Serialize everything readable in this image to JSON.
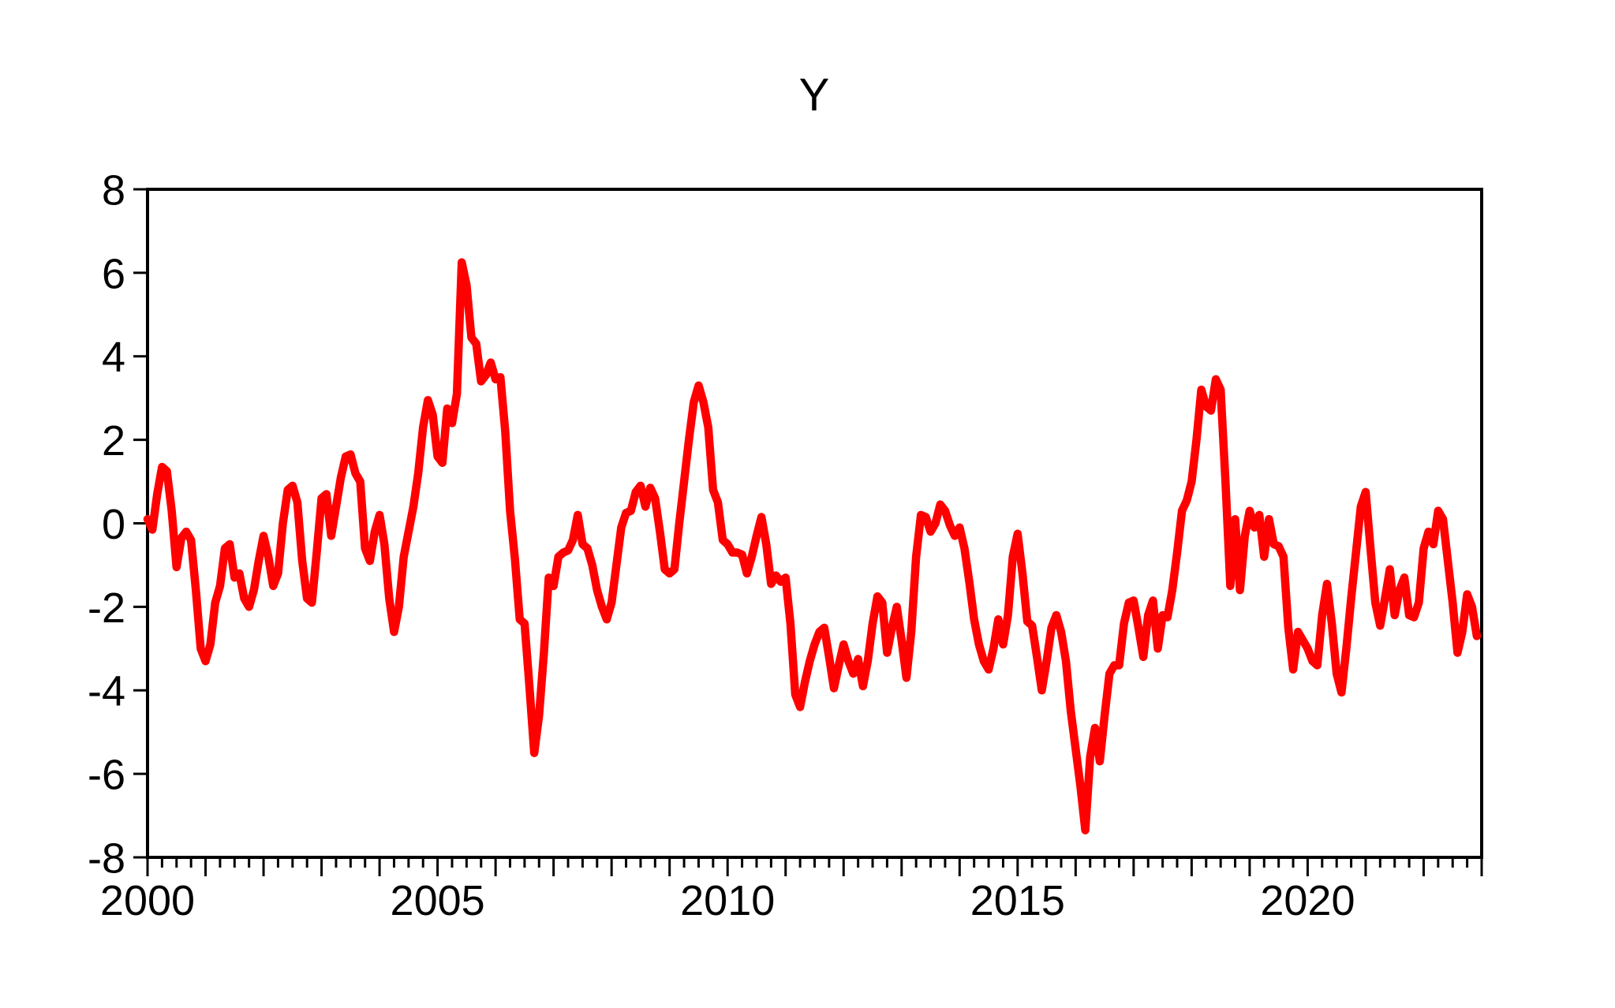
{
  "page": {
    "background_color": "#ffffff",
    "text_color": "#000000"
  },
  "chart_data": {
    "type": "line",
    "title": "Y",
    "xlabel": "",
    "ylabel": "",
    "xlim": [
      2000,
      2023
    ],
    "ylim": [
      -8,
      8
    ],
    "grid": false,
    "legend": "none",
    "frame": "box",
    "frame_color": "#000000",
    "y_ticks": [
      8,
      6,
      4,
      2,
      0,
      -2,
      -4,
      -6,
      -8
    ],
    "x_major_tick_years": [
      2000,
      2001,
      2002,
      2003,
      2004,
      2005,
      2006,
      2007,
      2008,
      2009,
      2010,
      2011,
      2012,
      2013,
      2014,
      2015,
      2016,
      2017,
      2018,
      2019,
      2020,
      2021,
      2022,
      2023
    ],
    "x_minor_tick_step_years": 0.25,
    "x_tick_labels": [
      {
        "label": "2000",
        "year": 2000
      },
      {
        "label": "2005",
        "year": 2005
      },
      {
        "label": "2010",
        "year": 2010
      },
      {
        "label": "2015",
        "year": 2015
      },
      {
        "label": "2020",
        "year": 2020
      }
    ],
    "series": [
      {
        "name": "Y",
        "color": "#ff0000",
        "line_width": 10.5,
        "frequency": "monthly",
        "start": "2000-01",
        "end": "2022-12",
        "values": [
          0.1,
          -0.15,
          0.7,
          1.35,
          1.25,
          0.3,
          -1.05,
          -0.35,
          -0.2,
          -0.4,
          -1.6,
          -3.0,
          -3.3,
          -2.9,
          -1.9,
          -1.5,
          -0.6,
          -0.5,
          -1.3,
          -1.2,
          -1.8,
          -2.0,
          -1.6,
          -0.9,
          -0.3,
          -0.8,
          -1.5,
          -1.2,
          0.0,
          0.8,
          0.9,
          0.5,
          -0.9,
          -1.8,
          -1.9,
          -0.7,
          0.6,
          0.7,
          -0.3,
          0.4,
          1.1,
          1.6,
          1.65,
          1.2,
          1.0,
          -0.6,
          -0.9,
          -0.2,
          0.2,
          -0.5,
          -1.8,
          -2.6,
          -2.0,
          -0.8,
          -0.2,
          0.4,
          1.2,
          2.3,
          2.95,
          2.6,
          1.6,
          1.45,
          2.75,
          2.4,
          3.1,
          6.25,
          5.7,
          4.45,
          4.3,
          3.4,
          3.55,
          3.85,
          3.45,
          3.5,
          2.2,
          0.3,
          -0.85,
          -2.3,
          -2.4,
          -3.9,
          -5.5,
          -4.6,
          -3.1,
          -1.3,
          -1.5,
          -0.8,
          -0.7,
          -0.65,
          -0.4,
          0.2,
          -0.5,
          -0.6,
          -1.0,
          -1.6,
          -2.0,
          -2.3,
          -1.9,
          -1.0,
          -0.1,
          0.25,
          0.3,
          0.75,
          0.9,
          0.4,
          0.85,
          0.6,
          -0.2,
          -1.1,
          -1.2,
          -1.1,
          0.0,
          1.0,
          2.0,
          2.9,
          3.3,
          2.9,
          2.3,
          0.8,
          0.5,
          -0.4,
          -0.5,
          -0.7,
          -0.7,
          -0.75,
          -1.2,
          -0.8,
          -0.3,
          0.15,
          -0.5,
          -1.45,
          -1.25,
          -1.4,
          -1.3,
          -2.4,
          -4.1,
          -4.4,
          -3.8,
          -3.3,
          -2.9,
          -2.6,
          -2.5,
          -3.2,
          -3.95,
          -3.4,
          -2.9,
          -3.3,
          -3.6,
          -3.25,
          -3.9,
          -3.3,
          -2.4,
          -1.75,
          -1.9,
          -3.1,
          -2.5,
          -2.0,
          -2.8,
          -3.7,
          -2.6,
          -0.8,
          0.2,
          0.15,
          -0.2,
          0.0,
          0.45,
          0.3,
          -0.05,
          -0.3,
          -0.1,
          -0.6,
          -1.4,
          -2.3,
          -2.9,
          -3.3,
          -3.5,
          -3.0,
          -2.3,
          -2.9,
          -2.2,
          -0.8,
          -0.25,
          -1.2,
          -2.35,
          -2.45,
          -3.2,
          -4.0,
          -3.3,
          -2.5,
          -2.2,
          -2.6,
          -3.3,
          -4.5,
          -5.4,
          -6.3,
          -7.35,
          -5.6,
          -4.9,
          -5.7,
          -4.6,
          -3.6,
          -3.4,
          -3.4,
          -2.4,
          -1.9,
          -1.85,
          -2.5,
          -3.2,
          -2.2,
          -1.85,
          -3.0,
          -2.2,
          -2.25,
          -1.6,
          -0.7,
          0.3,
          0.55,
          1.0,
          2.0,
          3.2,
          2.8,
          2.7,
          3.45,
          3.2,
          1.0,
          -1.5,
          0.1,
          -1.6,
          -0.3,
          0.3,
          -0.1,
          0.2,
          -0.8,
          0.1,
          -0.5,
          -0.55,
          -0.8,
          -2.5,
          -3.5,
          -2.6,
          -2.8,
          -3.0,
          -3.3,
          -3.4,
          -2.2,
          -1.45,
          -2.4,
          -3.6,
          -4.05,
          -3.0,
          -1.8,
          -0.7,
          0.4,
          0.75,
          -0.6,
          -1.9,
          -2.45,
          -1.8,
          -1.1,
          -2.2,
          -1.6,
          -1.3,
          -2.2,
          -2.25,
          -1.9,
          -0.6,
          -0.2,
          -0.5,
          0.3,
          0.1,
          -0.9,
          -1.9,
          -3.1,
          -2.6,
          -1.7,
          -2.0,
          -2.7
        ]
      }
    ]
  }
}
